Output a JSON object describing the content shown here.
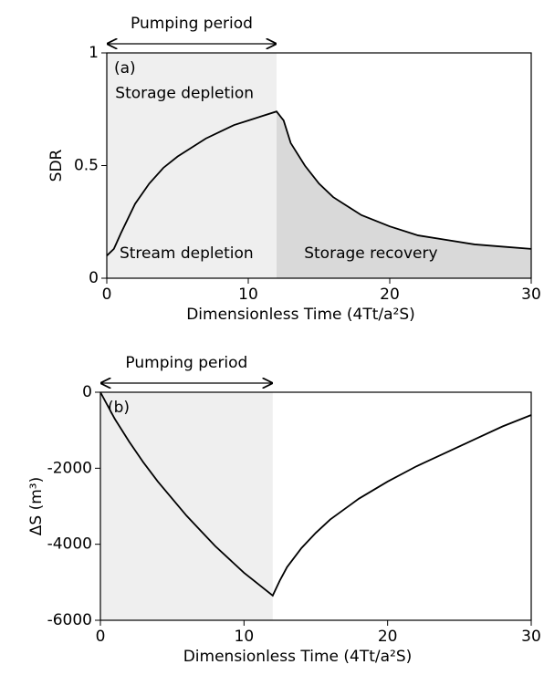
{
  "chart_data": [
    {
      "type": "line",
      "panel_label": "(a)",
      "y_label": "SDR",
      "x_label": "Dimensionless Time (4Tt/a²S)",
      "pumping_label": "Pumping period",
      "pumping_period": [
        0,
        12
      ],
      "annotations": [
        "Storage depletion",
        "Stream depletion",
        "Storage recovery"
      ],
      "xlim": [
        0,
        30
      ],
      "xticks": [
        0,
        10,
        20,
        30
      ],
      "ylim": [
        0,
        1
      ],
      "yticks": [
        0,
        0.5,
        1
      ],
      "x": [
        0,
        0.5,
        1,
        2,
        3,
        4,
        5,
        6,
        7,
        8,
        9,
        10,
        11,
        12,
        12.5,
        13,
        14,
        15,
        16,
        17,
        18,
        20,
        22,
        24,
        26,
        28,
        30
      ],
      "series": [
        {
          "color": "#000000",
          "values": [
            0.1,
            0.13,
            0.2,
            0.33,
            0.42,
            0.49,
            0.54,
            0.58,
            0.62,
            0.65,
            0.68,
            0.7,
            0.72,
            0.74,
            0.7,
            0.6,
            0.5,
            0.42,
            0.36,
            0.32,
            0.28,
            0.23,
            0.19,
            0.17,
            0.15,
            0.14,
            0.13
          ]
        }
      ]
    },
    {
      "type": "line",
      "panel_label": "(b)",
      "y_label": "ΔS (m³)",
      "x_label": "Dimensionless Time (4Tt/a²S)",
      "pumping_label": "Pumping period",
      "pumping_period": [
        0,
        12
      ],
      "xlim": [
        0,
        30
      ],
      "xticks": [
        0,
        10,
        20,
        30
      ],
      "ylim": [
        -6000,
        0
      ],
      "yticks": [
        0,
        -2000,
        -4000,
        -6000
      ],
      "x": [
        0,
        1,
        2,
        3,
        4,
        5,
        6,
        7,
        8,
        9,
        10,
        11,
        12,
        12.5,
        13,
        14,
        15,
        16,
        18,
        20,
        22,
        24,
        26,
        28,
        30
      ],
      "series": [
        {
          "color": "#000000",
          "values": [
            0,
            -700,
            -1300,
            -1850,
            -2350,
            -2800,
            -3250,
            -3650,
            -4050,
            -4400,
            -4750,
            -5050,
            -5350,
            -4950,
            -4600,
            -4100,
            -3700,
            -3350,
            -2800,
            -2350,
            -1950,
            -1600,
            -1250,
            -900,
            -600
          ]
        }
      ]
    }
  ]
}
